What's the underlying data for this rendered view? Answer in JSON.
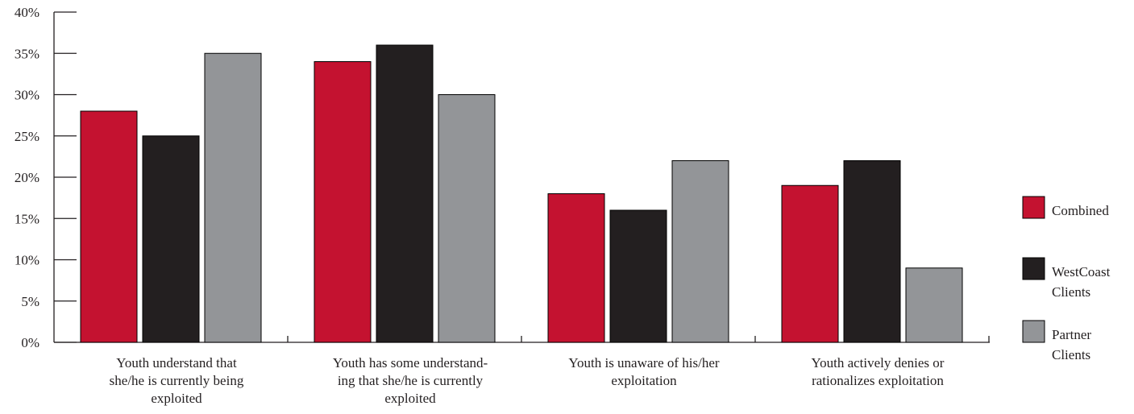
{
  "chart_data": {
    "type": "bar",
    "categories": [
      [
        "Youth understand that",
        "she/he is currently being",
        "exploited"
      ],
      [
        "Youth has some understand-",
        "ing that she/he is currently",
        "exploited"
      ],
      [
        "Youth is unaware of his/her",
        "exploitation"
      ],
      [
        "Youth actively denies or",
        "rationalizes exploitation"
      ]
    ],
    "series": [
      {
        "name": [
          "Combined"
        ],
        "color": "#c41230",
        "values": [
          28,
          34,
          18,
          19
        ]
      },
      {
        "name": [
          "WestCoast",
          "Clients"
        ],
        "color": "#231f20",
        "values": [
          25,
          36,
          16,
          22
        ]
      },
      {
        "name": [
          "Partner",
          "Clients"
        ],
        "color": "#939598",
        "values": [
          35,
          30,
          22,
          9
        ]
      }
    ],
    "ylim": [
      0,
      40
    ],
    "yticks": [
      0,
      5,
      10,
      15,
      20,
      25,
      30,
      35,
      40
    ],
    "ytick_labels": [
      "0%",
      "5%",
      "10%",
      "15%",
      "20%",
      "25%",
      "30%",
      "35%",
      "40%"
    ],
    "title": "",
    "xlabel": "",
    "ylabel": "",
    "grid": false,
    "legend_position": "right"
  }
}
